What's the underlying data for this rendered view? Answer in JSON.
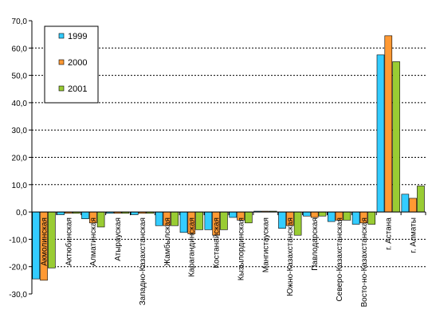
{
  "chart_data": {
    "type": "bar",
    "title": "",
    "xlabel": "",
    "ylabel": "",
    "ylim": [
      -30,
      70
    ],
    "yticks": [
      "70,0",
      "60,0",
      "50,0",
      "40,0",
      "30,0",
      "20,0",
      "10,0",
      "0,0",
      "-10,0",
      "-20,0",
      "-30,0"
    ],
    "grid": "horizontal-dotted",
    "legend_position": "top-left",
    "categories": [
      "Акмолинская",
      "Актюбинская",
      "Алматинская",
      "Атырауская",
      "Западно-Казахстанская",
      "Жамбылская",
      "Карагандинская",
      "Костанайская",
      "Кызылординская",
      "Мангистауская",
      "Южно-Казахстанская",
      "Павлодарская",
      "Северо-Казахстанская",
      "Восто-но-Казахстанская",
      "г. Астана",
      "г. Алматы"
    ],
    "series": [
      {
        "name": "1999",
        "color": "#33ccff",
        "values": [
          -24.5,
          -1.0,
          -2.5,
          -0.5,
          -1.0,
          -5.0,
          -7.5,
          -6.5,
          -2.0,
          0.3,
          -6.0,
          -1.5,
          -3.5,
          -4.5,
          57.5,
          6.5
        ]
      },
      {
        "name": "2000",
        "color": "#ff9933",
        "values": [
          -25.0,
          -0.5,
          -4.0,
          -0.5,
          -0.5,
          -5.0,
          -8.0,
          -8.5,
          -3.0,
          0.3,
          -5.0,
          -2.0,
          -3.0,
          -4.0,
          64.5,
          5.0
        ]
      },
      {
        "name": "2001",
        "color": "#99cc33",
        "values": [
          -20.5,
          -0.5,
          -5.5,
          -0.5,
          -0.5,
          -5.0,
          -6.5,
          -6.5,
          -4.0,
          0.3,
          -8.5,
          -1.5,
          -3.0,
          -4.5,
          55.0,
          9.5
        ]
      }
    ]
  }
}
